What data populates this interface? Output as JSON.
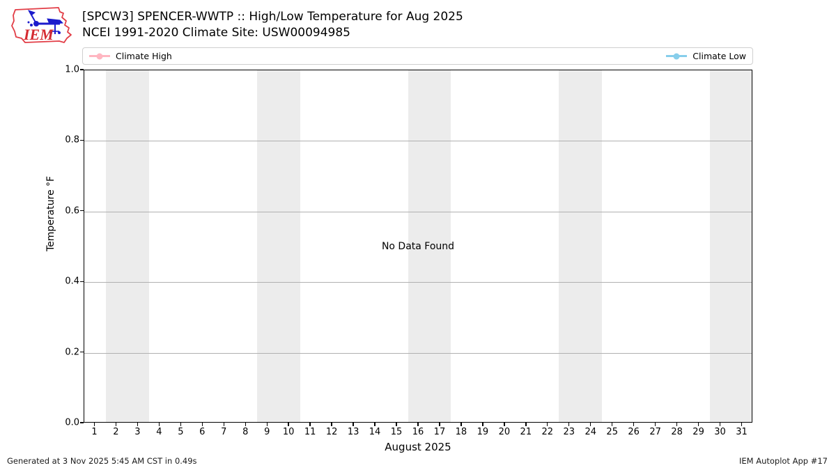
{
  "header": {
    "title_line1": "[SPCW3] SPENCER-WWTP :: High/Low Temperature for Aug 2025",
    "title_line2": "NCEI 1991-2020 Climate Site: USW00094985",
    "logo_text": "IEM"
  },
  "legend": {
    "items": [
      {
        "label": "Climate High",
        "color": "#FFB6C1"
      },
      {
        "label": "Climate Low",
        "color": "#87CEEB"
      }
    ]
  },
  "chart_data": {
    "type": "line",
    "title": "[SPCW3] SPENCER-WWTP :: High/Low Temperature for Aug 2025",
    "subtitle": "NCEI 1991-2020 Climate Site: USW00094985",
    "xlabel": "August 2025",
    "ylabel": "Temperature °F",
    "xlim": [
      0.5,
      31.5
    ],
    "ylim": [
      0.0,
      1.0
    ],
    "x_ticks": [
      1,
      2,
      3,
      4,
      5,
      6,
      7,
      8,
      9,
      10,
      11,
      12,
      13,
      14,
      15,
      16,
      17,
      18,
      19,
      20,
      21,
      22,
      23,
      24,
      25,
      26,
      27,
      28,
      29,
      30,
      31
    ],
    "y_ticks": [
      {
        "v": 0.0,
        "label": "0.0"
      },
      {
        "v": 0.2,
        "label": "0.2"
      },
      {
        "v": 0.4,
        "label": "0.4"
      },
      {
        "v": 0.6,
        "label": "0.6"
      },
      {
        "v": 0.8,
        "label": "0.8"
      },
      {
        "v": 1.0,
        "label": "1.0"
      }
    ],
    "series": [
      {
        "name": "Climate High",
        "color": "#FFB6C1",
        "values": []
      },
      {
        "name": "Climate Low",
        "color": "#87CEEB",
        "values": []
      }
    ],
    "no_data_message": "No Data Found",
    "weekend_bands": [
      [
        1.5,
        3.5
      ],
      [
        8.5,
        10.5
      ],
      [
        15.5,
        17.5
      ],
      [
        22.5,
        24.5
      ],
      [
        29.5,
        31.5
      ]
    ],
    "band_color": "#ececec",
    "grid": "horizontal",
    "grid_color": "#b0b0b0",
    "legend_position": "top-full-width"
  },
  "footer": {
    "left": "Generated at 3 Nov 2025 5:45 AM CST in 0.49s",
    "right": "IEM Autoplot App #17"
  }
}
